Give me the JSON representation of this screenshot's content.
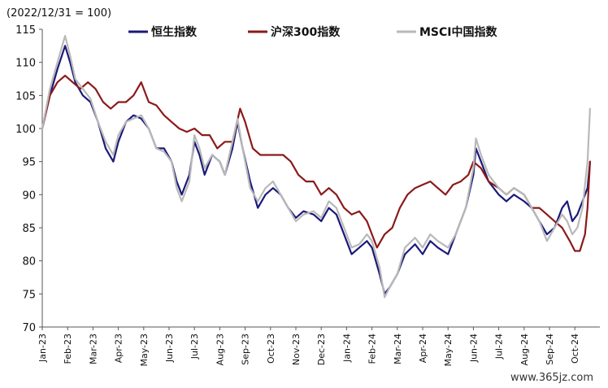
{
  "chart_data": {
    "type": "line",
    "unit_label": "(2022/12/31 = 100)",
    "ylim": [
      70,
      115
    ],
    "yticks": [
      70,
      75,
      80,
      85,
      90,
      95,
      100,
      105,
      110,
      115
    ],
    "xlim": [
      0,
      21.3
    ],
    "x_tick_labels": [
      "Jan-23",
      "Feb-23",
      "Mar-23",
      "Apr-23",
      "May-23",
      "Jun-23",
      "Jul-23",
      "Aug-23",
      "Sep-23",
      "Oct-23",
      "Nov-23",
      "Dec-23",
      "Jan-24",
      "Feb-24",
      "Mar-24",
      "Apr-24",
      "May-24",
      "Jun-24",
      "Jul-24",
      "Aug-24",
      "Sep-24",
      "Oct-24"
    ],
    "legend": "top",
    "series": [
      {
        "name": "恒生指数",
        "color": "#1a1a7a",
        "points": [
          [
            0,
            100
          ],
          [
            0.3,
            105
          ],
          [
            0.6,
            109
          ],
          [
            0.9,
            112.5
          ],
          [
            1.1,
            110
          ],
          [
            1.3,
            107
          ],
          [
            1.6,
            105
          ],
          [
            1.9,
            104
          ],
          [
            2.2,
            101
          ],
          [
            2.5,
            97
          ],
          [
            2.8,
            95
          ],
          [
            3.0,
            98
          ],
          [
            3.3,
            101
          ],
          [
            3.6,
            102
          ],
          [
            3.9,
            101.5
          ],
          [
            4.2,
            100
          ],
          [
            4.5,
            97
          ],
          [
            4.8,
            97
          ],
          [
            5.1,
            95
          ],
          [
            5.3,
            92
          ],
          [
            5.5,
            90
          ],
          [
            5.8,
            93
          ],
          [
            6.0,
            98
          ],
          [
            6.2,
            96
          ],
          [
            6.4,
            93
          ],
          [
            6.7,
            96
          ],
          [
            7.0,
            95
          ],
          [
            7.2,
            93
          ],
          [
            7.5,
            97
          ],
          [
            7.7,
            101
          ],
          [
            7.9,
            97
          ],
          [
            8.2,
            92
          ],
          [
            8.5,
            88
          ],
          [
            8.8,
            90
          ],
          [
            9.1,
            91
          ],
          [
            9.4,
            90
          ],
          [
            9.7,
            88
          ],
          [
            10.0,
            86.5
          ],
          [
            10.3,
            87.5
          ],
          [
            10.7,
            87
          ],
          [
            11.0,
            86
          ],
          [
            11.3,
            88
          ],
          [
            11.6,
            87
          ],
          [
            12.0,
            83
          ],
          [
            12.2,
            81
          ],
          [
            12.5,
            82
          ],
          [
            12.8,
            83
          ],
          [
            13.0,
            82
          ],
          [
            13.3,
            78
          ],
          [
            13.5,
            75
          ],
          [
            13.7,
            76
          ],
          [
            14.0,
            78
          ],
          [
            14.3,
            81
          ],
          [
            14.7,
            82.5
          ],
          [
            15.0,
            81
          ],
          [
            15.3,
            83
          ],
          [
            15.6,
            82
          ],
          [
            16.0,
            81
          ],
          [
            16.3,
            84
          ],
          [
            16.7,
            88
          ],
          [
            17.0,
            93
          ],
          [
            17.1,
            97
          ],
          [
            17.3,
            95
          ],
          [
            17.6,
            92
          ],
          [
            18.0,
            90
          ],
          [
            18.3,
            89
          ],
          [
            18.6,
            90
          ],
          [
            19.0,
            89
          ],
          [
            19.3,
            88
          ],
          [
            19.6,
            86
          ],
          [
            19.9,
            84
          ],
          [
            20.2,
            85
          ],
          [
            20.5,
            88
          ],
          [
            20.7,
            89
          ],
          [
            20.9,
            86
          ],
          [
            21.1,
            87
          ],
          [
            21.3,
            89
          ],
          [
            21.5,
            91
          ],
          [
            21.6,
            95
          ]
        ]
      },
      {
        "name": "沪深300指数",
        "color": "#8b1a1a",
        "points": [
          [
            0,
            100
          ],
          [
            0.3,
            105
          ],
          [
            0.6,
            107
          ],
          [
            0.9,
            108
          ],
          [
            1.2,
            107
          ],
          [
            1.5,
            106
          ],
          [
            1.8,
            107
          ],
          [
            2.1,
            106
          ],
          [
            2.4,
            104
          ],
          [
            2.7,
            103
          ],
          [
            3.0,
            104
          ],
          [
            3.3,
            104
          ],
          [
            3.6,
            105
          ],
          [
            3.9,
            107
          ],
          [
            4.2,
            104
          ],
          [
            4.5,
            103.5
          ],
          [
            4.8,
            102
          ],
          [
            5.1,
            101
          ],
          [
            5.4,
            100
          ],
          [
            5.7,
            99.5
          ],
          [
            6.0,
            100
          ],
          [
            6.3,
            99
          ],
          [
            6.6,
            99
          ],
          [
            6.9,
            97
          ],
          [
            7.2,
            98
          ],
          [
            7.5,
            98
          ],
          [
            7.8,
            103
          ],
          [
            8.0,
            101
          ],
          [
            8.3,
            97
          ],
          [
            8.6,
            96
          ],
          [
            8.9,
            96
          ],
          [
            9.2,
            96
          ],
          [
            9.5,
            96
          ],
          [
            9.8,
            95
          ],
          [
            10.1,
            93
          ],
          [
            10.4,
            92
          ],
          [
            10.7,
            92
          ],
          [
            11.0,
            90
          ],
          [
            11.3,
            91
          ],
          [
            11.6,
            90
          ],
          [
            11.9,
            88
          ],
          [
            12.2,
            87
          ],
          [
            12.5,
            87.5
          ],
          [
            12.8,
            86
          ],
          [
            13.0,
            84
          ],
          [
            13.2,
            82
          ],
          [
            13.5,
            84
          ],
          [
            13.8,
            85
          ],
          [
            14.1,
            88
          ],
          [
            14.4,
            90
          ],
          [
            14.7,
            91
          ],
          [
            15.0,
            91.5
          ],
          [
            15.3,
            92
          ],
          [
            15.6,
            91
          ],
          [
            15.9,
            90
          ],
          [
            16.2,
            91.5
          ],
          [
            16.5,
            92
          ],
          [
            16.8,
            93
          ],
          [
            17.0,
            95
          ],
          [
            17.3,
            94
          ],
          [
            17.6,
            92
          ],
          [
            18.0,
            91
          ],
          [
            18.3,
            90
          ],
          [
            18.6,
            91
          ],
          [
            19.0,
            90
          ],
          [
            19.3,
            88
          ],
          [
            19.6,
            88
          ],
          [
            19.9,
            87
          ],
          [
            20.2,
            86
          ],
          [
            20.5,
            85
          ],
          [
            20.8,
            83
          ],
          [
            21.0,
            81.5
          ],
          [
            21.2,
            81.5
          ],
          [
            21.4,
            84
          ],
          [
            21.5,
            88
          ],
          [
            21.6,
            95
          ]
        ]
      },
      {
        "name": "MSCI中国指数",
        "color": "#b9b9b9",
        "points": [
          [
            0,
            100
          ],
          [
            0.3,
            106
          ],
          [
            0.6,
            110
          ],
          [
            0.9,
            114
          ],
          [
            1.1,
            111
          ],
          [
            1.3,
            107.5
          ],
          [
            1.6,
            106
          ],
          [
            1.9,
            104.5
          ],
          [
            2.2,
            101
          ],
          [
            2.5,
            98
          ],
          [
            2.8,
            96
          ],
          [
            3.0,
            99
          ],
          [
            3.3,
            101
          ],
          [
            3.6,
            101.5
          ],
          [
            3.9,
            102
          ],
          [
            4.2,
            100
          ],
          [
            4.5,
            97
          ],
          [
            4.8,
            96.5
          ],
          [
            5.1,
            95
          ],
          [
            5.3,
            91
          ],
          [
            5.5,
            89
          ],
          [
            5.8,
            92
          ],
          [
            6.0,
            99
          ],
          [
            6.2,
            97
          ],
          [
            6.4,
            94
          ],
          [
            6.7,
            96
          ],
          [
            7.0,
            95
          ],
          [
            7.2,
            93
          ],
          [
            7.5,
            98
          ],
          [
            7.7,
            101.5
          ],
          [
            7.9,
            97
          ],
          [
            8.2,
            91
          ],
          [
            8.5,
            89
          ],
          [
            8.8,
            91
          ],
          [
            9.1,
            92
          ],
          [
            9.4,
            90
          ],
          [
            9.7,
            88
          ],
          [
            10.0,
            86
          ],
          [
            10.3,
            87
          ],
          [
            10.7,
            87.5
          ],
          [
            11.0,
            86.5
          ],
          [
            11.3,
            89
          ],
          [
            11.6,
            88
          ],
          [
            12.0,
            84
          ],
          [
            12.2,
            82
          ],
          [
            12.5,
            82.5
          ],
          [
            12.8,
            84
          ],
          [
            13.0,
            83
          ],
          [
            13.3,
            79
          ],
          [
            13.5,
            74.5
          ],
          [
            13.7,
            76
          ],
          [
            14.0,
            78
          ],
          [
            14.3,
            82
          ],
          [
            14.7,
            83.5
          ],
          [
            15.0,
            82
          ],
          [
            15.3,
            84
          ],
          [
            15.6,
            83
          ],
          [
            16.0,
            82
          ],
          [
            16.3,
            84
          ],
          [
            16.7,
            88
          ],
          [
            17.0,
            94
          ],
          [
            17.1,
            98.5
          ],
          [
            17.3,
            96
          ],
          [
            17.6,
            93
          ],
          [
            18.0,
            91
          ],
          [
            18.3,
            90
          ],
          [
            18.6,
            91
          ],
          [
            19.0,
            90
          ],
          [
            19.3,
            88
          ],
          [
            19.6,
            86
          ],
          [
            19.9,
            83
          ],
          [
            20.2,
            85
          ],
          [
            20.5,
            87
          ],
          [
            20.7,
            86
          ],
          [
            20.9,
            84
          ],
          [
            21.1,
            85
          ],
          [
            21.3,
            88
          ],
          [
            21.5,
            95
          ],
          [
            21.6,
            103
          ]
        ]
      }
    ]
  },
  "watermark": "www.365jz.com"
}
